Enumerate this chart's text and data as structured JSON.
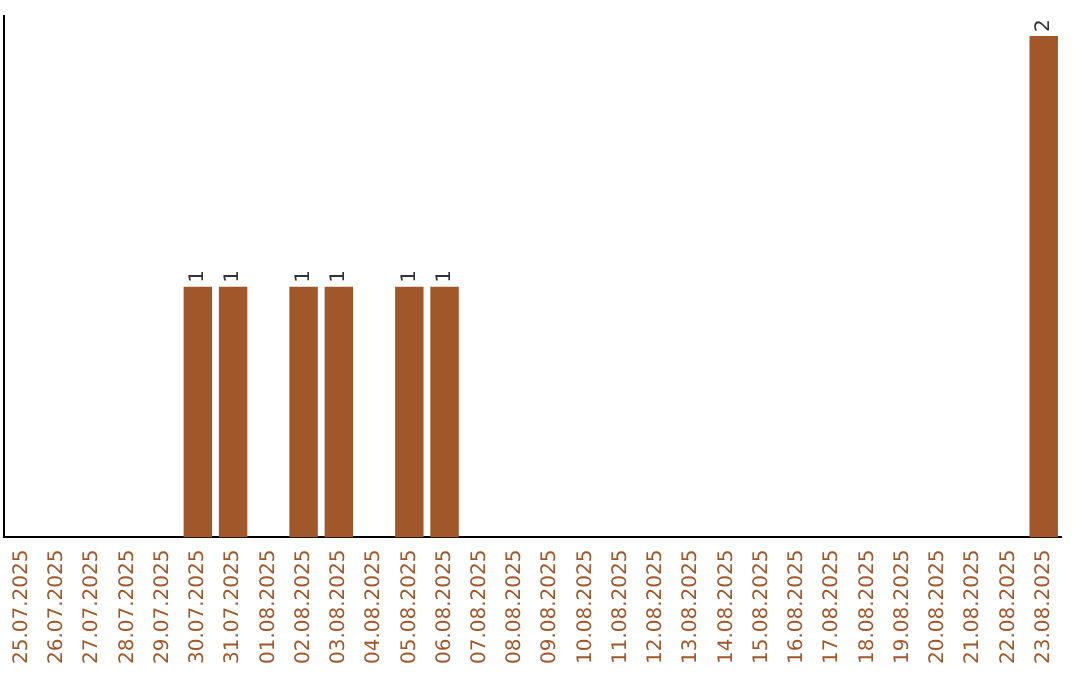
{
  "chart_data": {
    "type": "bar",
    "categories": [
      "25.07.2025",
      "26.07.2025",
      "27.07.2025",
      "28.07.2025",
      "29.07.2025",
      "30.07.2025",
      "31.07.2025",
      "01.08.2025",
      "02.08.2025",
      "03.08.2025",
      "04.08.2025",
      "05.08.2025",
      "06.08.2025",
      "07.08.2025",
      "08.08.2025",
      "09.08.2025",
      "10.08.2025",
      "11.08.2025",
      "12.08.2025",
      "13.08.2025",
      "14.08.2025",
      "15.08.2025",
      "16.08.2025",
      "17.08.2025",
      "18.08.2025",
      "19.08.2025",
      "20.08.2025",
      "21.08.2025",
      "22.08.2025",
      "23.08.2025"
    ],
    "values": [
      0,
      0,
      0,
      0,
      0,
      1,
      1,
      0,
      1,
      1,
      0,
      1,
      1,
      0,
      0,
      0,
      0,
      0,
      0,
      0,
      0,
      0,
      0,
      0,
      0,
      0,
      0,
      0,
      0,
      2
    ],
    "color": "#a0572a",
    "ylim": [
      0,
      2.08
    ],
    "tick_labels": "x",
    "value_labels": [
      null,
      null,
      null,
      null,
      null,
      "1",
      "1",
      null,
      "1",
      "1",
      null,
      "1",
      "1",
      null,
      null,
      null,
      null,
      null,
      null,
      null,
      null,
      null,
      null,
      null,
      null,
      null,
      null,
      null,
      null,
      "2"
    ],
    "grid": false,
    "legend": false
  }
}
